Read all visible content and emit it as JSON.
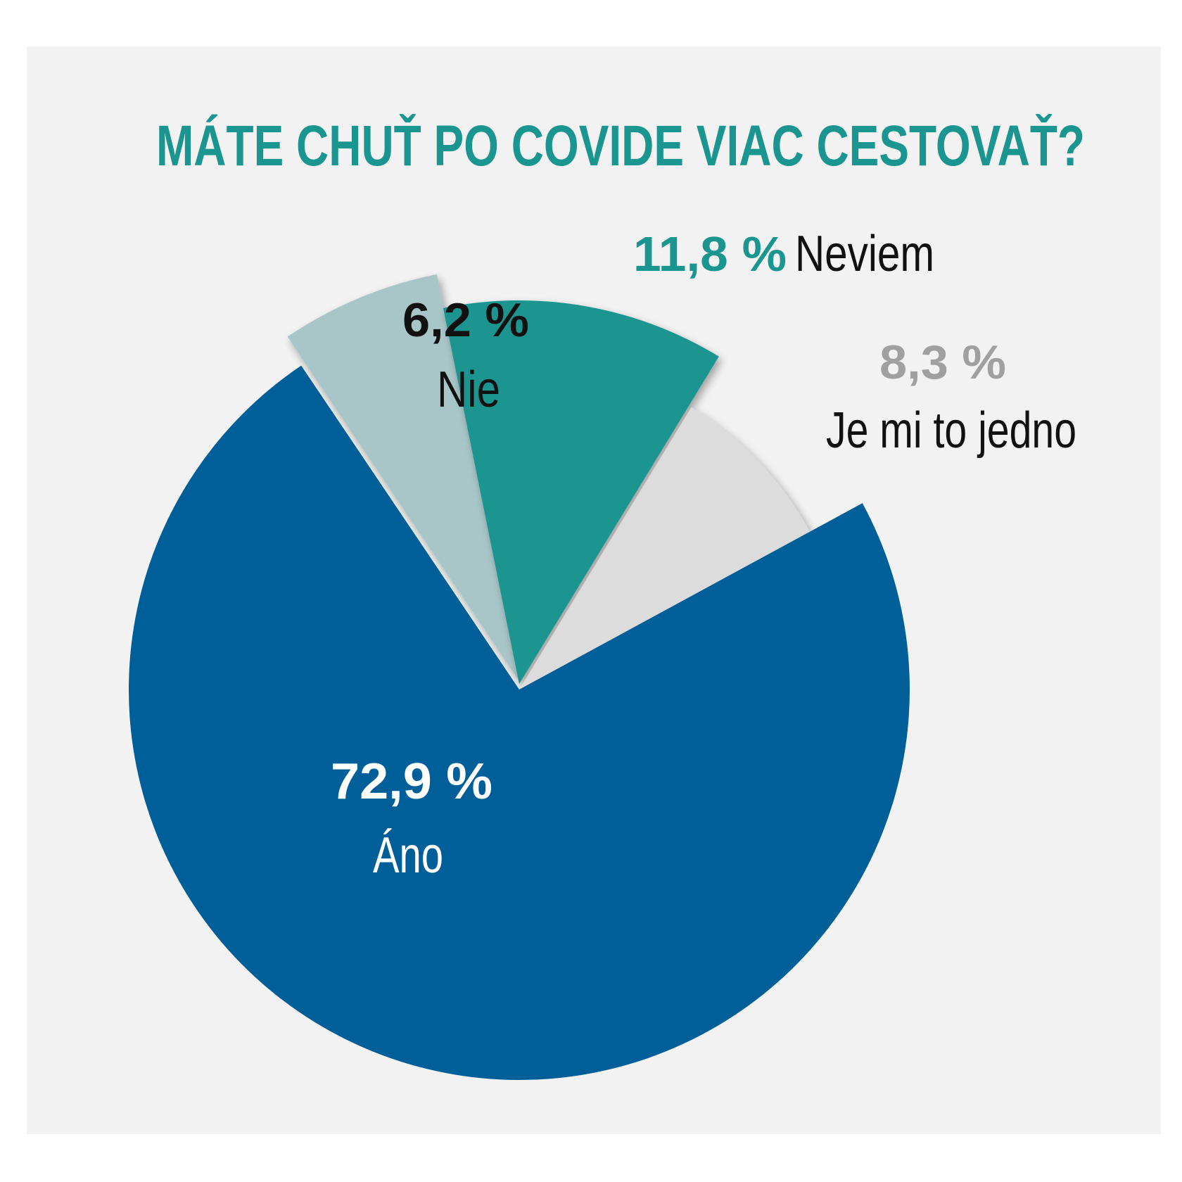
{
  "chart_data": {
    "type": "pie",
    "title": "MÁTE CHUŤ PO COVIDE VIAC CESTOVAŤ?",
    "slices": [
      {
        "label": "Áno",
        "percent_label": "72,9 %",
        "value": 72.9,
        "color": "#005f99",
        "percent_color": "#ffffff",
        "label_color": "#ffffff"
      },
      {
        "label": "Nie",
        "percent_label": "6,2 %",
        "value": 6.2,
        "color": "#a8c6c8",
        "percent_color": "#111111",
        "label_color": "#111111"
      },
      {
        "label": "Neviem",
        "percent_label": "11,8 %",
        "value": 11.8,
        "color": "#1a9590",
        "percent_color": "#1a9590",
        "label_color": "#111111"
      },
      {
        "label": "Je mi to jedno",
        "percent_label": "8,3 %",
        "value": 8.3,
        "color": "#dcdcdc",
        "percent_color": "#a0a0a0",
        "label_color": "#111111"
      }
    ],
    "title_color": "#1a9590",
    "background": "#f2f2f2"
  }
}
